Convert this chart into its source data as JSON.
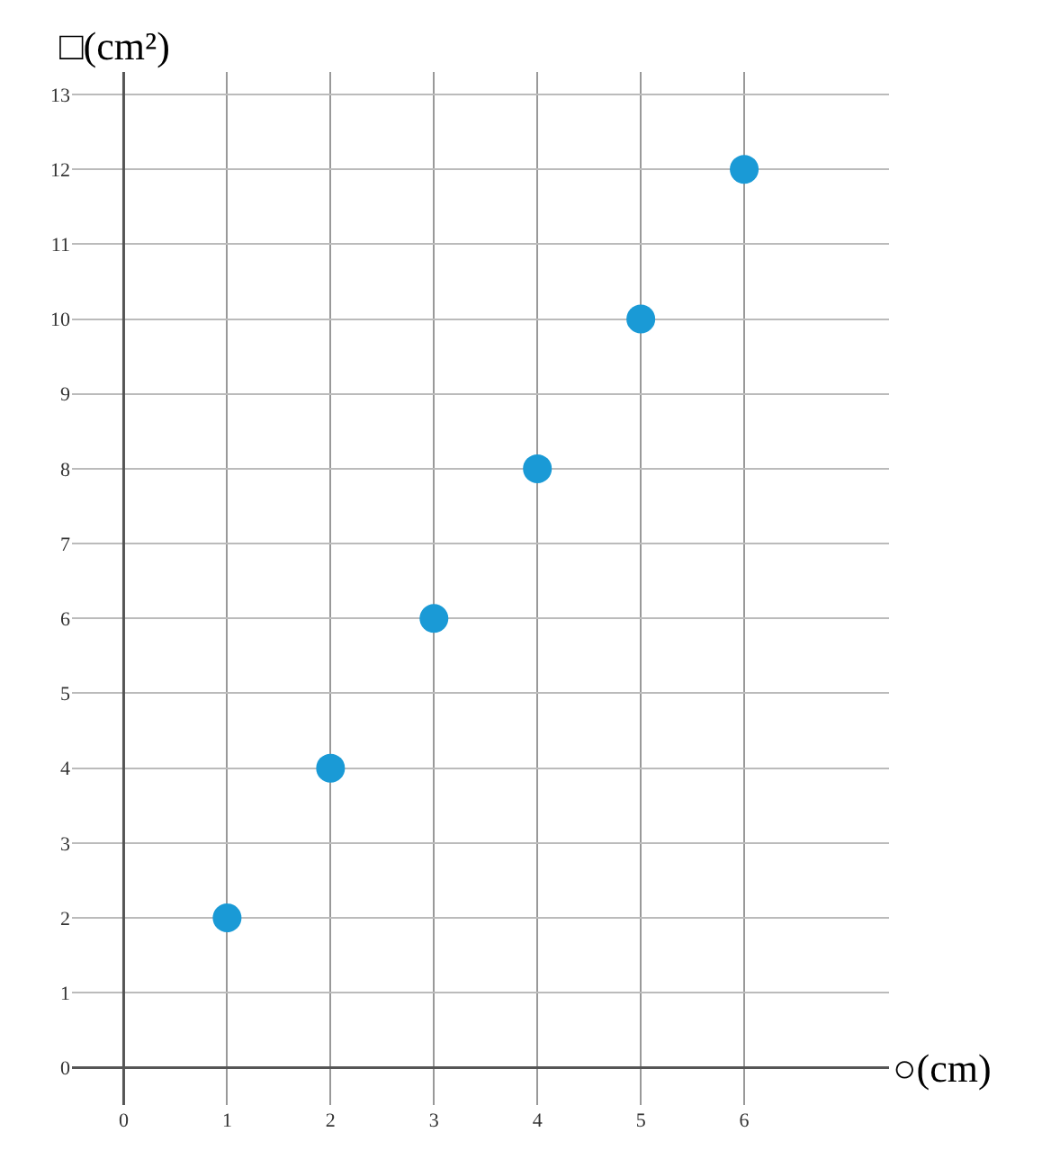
{
  "chart_data": {
    "type": "scatter",
    "xlabel": "○(cm)",
    "ylabel": "□(cm²)",
    "x": [
      1,
      2,
      3,
      4,
      5,
      6
    ],
    "series": [
      {
        "color": "#1a9ad6",
        "values": [
          2,
          4,
          6,
          8,
          10,
          12
        ]
      }
    ],
    "xlim": [
      -0.5,
      7.4
    ],
    "ylim": [
      -0.5,
      13.3
    ],
    "xticks": [
      0,
      1,
      2,
      3,
      4,
      5,
      6
    ],
    "yticks": [
      0,
      1,
      2,
      3,
      4,
      5,
      6,
      7,
      8,
      9,
      10,
      11,
      12,
      13
    ],
    "grid": true,
    "marker": "circle"
  }
}
